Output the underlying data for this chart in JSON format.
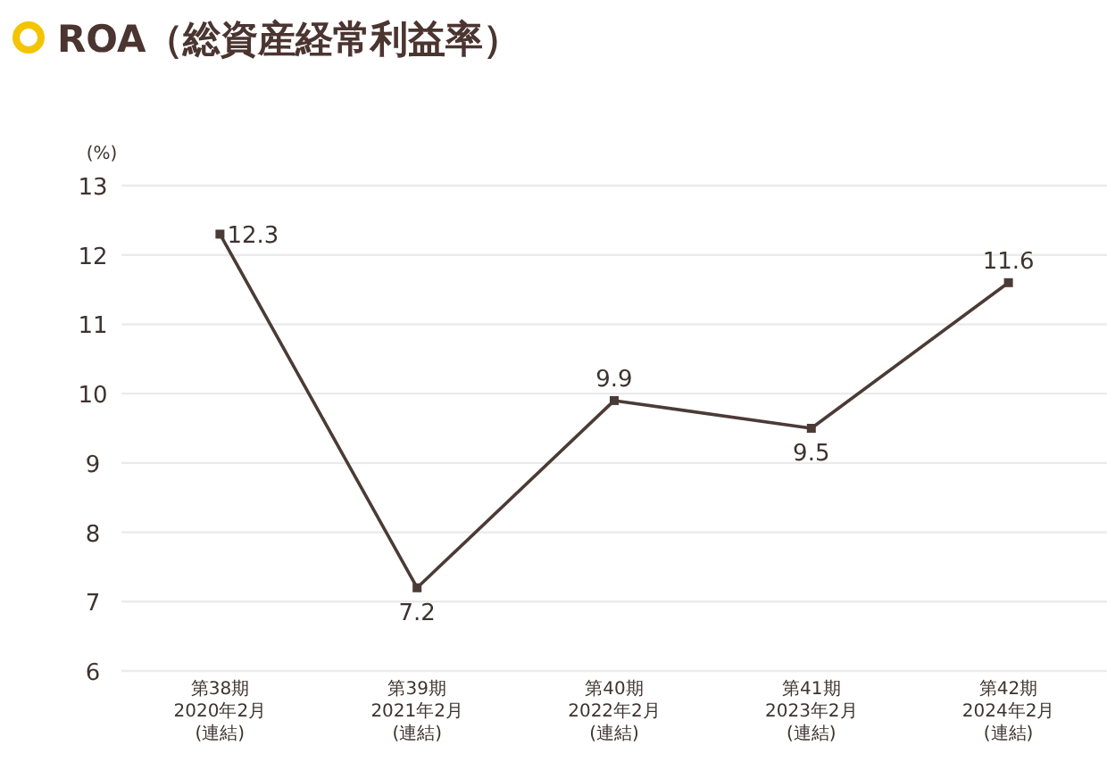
{
  "chart_data": {
    "type": "line",
    "title": "ROA（総資産経常利益率）",
    "ylabel": "(%)",
    "categories": [
      "第38期\n2020年2月\n(連結)",
      "第39期\n2021年2月\n(連結)",
      "第40期\n2022年2月\n(連結)",
      "第41期\n2023年2月\n(連結)",
      "第42期\n2024年2月\n(連結)"
    ],
    "series": [
      {
        "color": "#4b3b36",
        "values": [
          12.3,
          7.2,
          9.9,
          9.5,
          11.6
        ]
      }
    ],
    "ylim": [
      6,
      13
    ],
    "yticks": [
      6,
      7,
      8,
      9,
      10,
      11,
      12,
      13
    ],
    "grid": "y",
    "marker": "square",
    "line_style": "solid",
    "data_labels": true
  }
}
